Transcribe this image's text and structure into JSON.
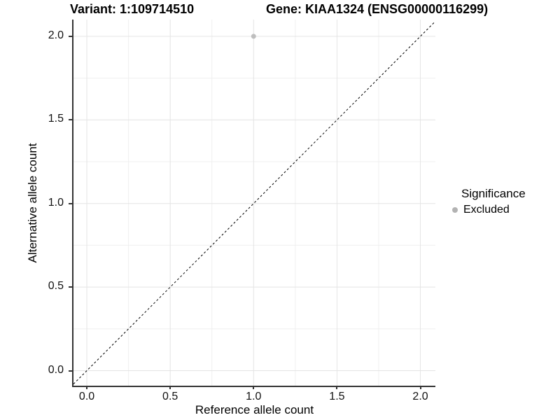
{
  "chart_data": {
    "type": "scatter",
    "title_left": "Variant: 1:109714510",
    "title_right": "Gene: KIAA1324 (ENSG00000116299)",
    "xlabel": "Reference allele count",
    "ylabel": "Alternative allele count",
    "xlim": [
      -0.08,
      2.09
    ],
    "ylim": [
      -0.09,
      2.1
    ],
    "x_ticks": [
      "0.0",
      "0.5",
      "1.0",
      "1.5",
      "2.0"
    ],
    "y_ticks": [
      "0.0",
      "0.5",
      "1.0",
      "1.5",
      "2.0"
    ],
    "points": [
      {
        "x": 1.0,
        "y": 2.0,
        "significance": "Excluded",
        "color": "#bebebe",
        "radius": 3.5
      }
    ],
    "reference_line": {
      "type": "identity",
      "style": "dashed",
      "color": "#000000",
      "dash": "3,3"
    },
    "legend": {
      "title": "Significance",
      "position": "right",
      "items": [
        {
          "label": "Excluded",
          "color": "#b3b3b3",
          "marker": "circle"
        }
      ]
    },
    "grid": {
      "major_color": "#e4e4e4",
      "minor_color": "#efefef",
      "background": "#ffffff"
    },
    "axis_color": "#333333"
  }
}
